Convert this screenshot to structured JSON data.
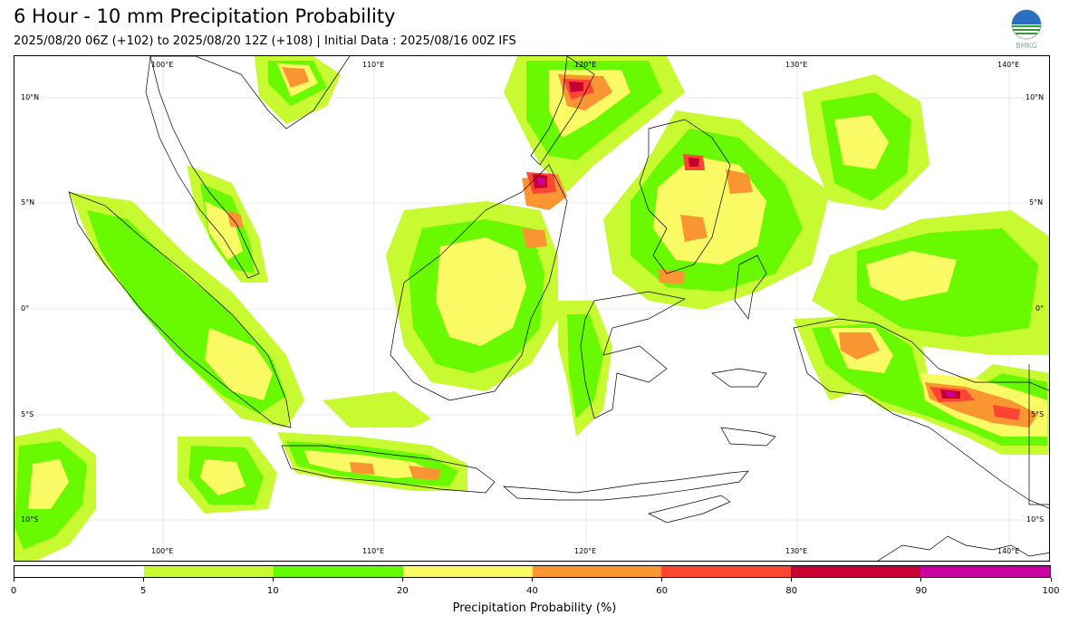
{
  "header": {
    "title": "6 Hour - 10 mm Precipitation Probability",
    "subtitle": "2025/08/20 06Z (+102) to 2025/08/20 12Z (+108) | Initial Data : 2025/08/16 00Z IFS",
    "logo_text": "BMKG"
  },
  "map": {
    "lon_labels_top": [
      "100°E",
      "110°E",
      "120°E",
      "130°E",
      "140°E"
    ],
    "lon_labels_bottom": [
      "100°E",
      "110°E",
      "120°E",
      "130°E",
      "140°E"
    ],
    "lat_labels_left": [
      "10°N",
      "5°N",
      "0°",
      "5°S",
      "10°S"
    ],
    "lat_labels_right": [
      "10°N",
      "5°N",
      "0°",
      "5°S",
      "10°S"
    ],
    "colors": {
      "p5": "#c8fa32",
      "p10": "#64fa00",
      "p20": "#fafa64",
      "p40": "#fa9632",
      "p60": "#fa4632",
      "p80": "#c80032",
      "p90": "#c800a0",
      "coast": "#000000"
    }
  },
  "colorbar": {
    "segments": [
      "#ffffff",
      "#c8fa32",
      "#64fa00",
      "#fafa64",
      "#fa9632",
      "#fa4632",
      "#c80032",
      "#c800a0"
    ],
    "ticks": [
      "0",
      "5",
      "10",
      "20",
      "40",
      "60",
      "80",
      "90",
      "100"
    ],
    "label": "Precipitation Probability (%)"
  }
}
